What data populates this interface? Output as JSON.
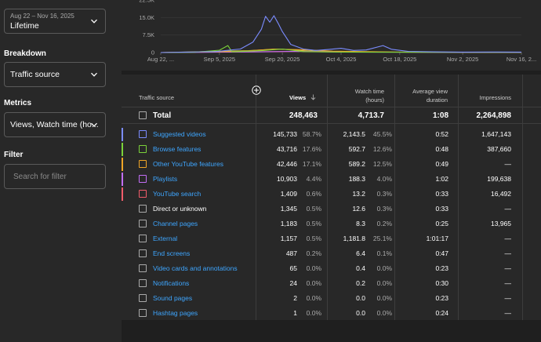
{
  "filters": {
    "date_range": "Aug 22 – Nov 16, 2025",
    "date_preset": "Lifetime",
    "breakdown_label": "Breakdown",
    "breakdown_value": "Traffic source",
    "metrics_label": "Metrics",
    "metrics_value": "Views, Watch time (ho...",
    "filter_label": "Filter",
    "filter_placeholder": "Search for filter"
  },
  "chart_data": {
    "type": "line",
    "y_ticks": [
      "0",
      "7.5K",
      "15.0K"
    ],
    "y_top_label_partial": "22.5K",
    "ylim": [
      0,
      22500
    ],
    "x_labels": [
      "Aug 22, ...",
      "Sep 5, 2025",
      "Sep 20, 2025",
      "Oct 4, 2025",
      "Oct 18, 2025",
      "Nov 2, 2025",
      "Nov 16, 2..."
    ],
    "date_range": [
      "2025-08-22",
      "2025-11-16"
    ],
    "grid": true,
    "series": [
      {
        "color": "#7b8cff",
        "points": [
          [
            "2025-08-22",
            0
          ],
          [
            "2025-08-28",
            200
          ],
          [
            "2025-09-04",
            400
          ],
          [
            "2025-09-10",
            1500
          ],
          [
            "2025-09-13",
            4500
          ],
          [
            "2025-09-15",
            10000
          ],
          [
            "2025-09-16",
            15500
          ],
          [
            "2025-09-17",
            13000
          ],
          [
            "2025-09-18",
            15800
          ],
          [
            "2025-09-19",
            12500
          ],
          [
            "2025-09-20",
            9000
          ],
          [
            "2025-09-22",
            3500
          ],
          [
            "2025-09-25",
            1500
          ],
          [
            "2025-09-28",
            900
          ],
          [
            "2025-10-01",
            1300
          ],
          [
            "2025-10-04",
            1800
          ],
          [
            "2025-10-07",
            900
          ],
          [
            "2025-10-10",
            1100
          ],
          [
            "2025-10-14",
            3000
          ],
          [
            "2025-10-16",
            1400
          ],
          [
            "2025-10-20",
            500
          ],
          [
            "2025-10-26",
            300
          ],
          [
            "2025-11-02",
            200
          ],
          [
            "2025-11-09",
            250
          ],
          [
            "2025-11-16",
            200
          ]
        ]
      },
      {
        "color": "#7bd23a",
        "points": [
          [
            "2025-08-22",
            0
          ],
          [
            "2025-08-30",
            100
          ],
          [
            "2025-09-05",
            1000
          ],
          [
            "2025-09-07",
            3000
          ],
          [
            "2025-09-08",
            300
          ],
          [
            "2025-09-15",
            800
          ],
          [
            "2025-09-20",
            1500
          ],
          [
            "2025-09-25",
            400
          ],
          [
            "2025-10-04",
            200
          ],
          [
            "2025-10-18",
            150
          ],
          [
            "2025-11-02",
            100
          ],
          [
            "2025-11-16",
            100
          ]
        ]
      },
      {
        "color": "#f0a526",
        "points": [
          [
            "2025-08-22",
            0
          ],
          [
            "2025-09-10",
            500
          ],
          [
            "2025-09-18",
            1500
          ],
          [
            "2025-09-25",
            1200
          ],
          [
            "2025-10-02",
            600
          ],
          [
            "2025-10-18",
            200
          ],
          [
            "2025-11-02",
            150
          ],
          [
            "2025-11-16",
            100
          ]
        ]
      },
      {
        "color": "#c26ef5",
        "points": [
          [
            "2025-08-22",
            0
          ],
          [
            "2025-09-15",
            300
          ],
          [
            "2025-09-22",
            500
          ],
          [
            "2025-10-05",
            200
          ],
          [
            "2025-11-16",
            50
          ]
        ]
      },
      {
        "color": "#f25c6a",
        "points": [
          [
            "2025-08-22",
            0
          ],
          [
            "2025-09-18",
            400
          ],
          [
            "2025-09-25",
            500
          ],
          [
            "2025-10-10",
            200
          ],
          [
            "2025-11-16",
            50
          ]
        ]
      },
      {
        "color": "#c9c24a",
        "points": [
          [
            "2025-08-22",
            0
          ],
          [
            "2025-09-12",
            800
          ],
          [
            "2025-09-19",
            1500
          ],
          [
            "2025-09-26",
            700
          ],
          [
            "2025-10-10",
            200
          ],
          [
            "2025-11-16",
            80
          ]
        ]
      }
    ]
  },
  "table": {
    "headers": {
      "source": "Traffic source",
      "views": "Views",
      "watch_line1": "Watch time",
      "watch_line2": "(hours)",
      "avd_line1": "Average view",
      "avd_line2": "duration",
      "impressions": "Impressions"
    },
    "total": {
      "label": "Total",
      "views": "248,463",
      "watch": "4,713.7",
      "avd": "1:08",
      "impressions": "2,264,898"
    },
    "rows": [
      {
        "source": "Suggested videos",
        "link": true,
        "color": "#7b8cff",
        "views": "145,733",
        "views_pct": "58.7%",
        "watch": "2,143.5",
        "watch_pct": "45.5%",
        "avd": "0:52",
        "impressions": "1,647,143"
      },
      {
        "source": "Browse features",
        "link": true,
        "color": "#7bd23a",
        "views": "43,716",
        "views_pct": "17.6%",
        "watch": "592.7",
        "watch_pct": "12.6%",
        "avd": "0:48",
        "impressions": "387,660"
      },
      {
        "source": "Other YouTube features",
        "link": true,
        "color": "#f0a526",
        "views": "42,446",
        "views_pct": "17.1%",
        "watch": "589.2",
        "watch_pct": "12.5%",
        "avd": "0:49",
        "impressions": "—"
      },
      {
        "source": "Playlists",
        "link": true,
        "color": "#c26ef5",
        "views": "10,903",
        "views_pct": "4.4%",
        "watch": "188.3",
        "watch_pct": "4.0%",
        "avd": "1:02",
        "impressions": "199,638"
      },
      {
        "source": "YouTube search",
        "link": true,
        "color": "#f25c6a",
        "views": "1,409",
        "views_pct": "0.6%",
        "watch": "13.2",
        "watch_pct": "0.3%",
        "avd": "0:33",
        "impressions": "16,492"
      },
      {
        "source": "Direct or unknown",
        "link": false,
        "color": "",
        "views": "1,345",
        "views_pct": "0.5%",
        "watch": "12.6",
        "watch_pct": "0.3%",
        "avd": "0:33",
        "impressions": "—"
      },
      {
        "source": "Channel pages",
        "link": true,
        "color": "",
        "views": "1,183",
        "views_pct": "0.5%",
        "watch": "8.3",
        "watch_pct": "0.2%",
        "avd": "0:25",
        "impressions": "13,965"
      },
      {
        "source": "External",
        "link": true,
        "color": "",
        "views": "1,157",
        "views_pct": "0.5%",
        "watch": "1,181.8",
        "watch_pct": "25.1%",
        "avd": "1:01:17",
        "impressions": "—"
      },
      {
        "source": "End screens",
        "link": true,
        "color": "",
        "views": "487",
        "views_pct": "0.2%",
        "watch": "6.4",
        "watch_pct": "0.1%",
        "avd": "0:47",
        "impressions": "—"
      },
      {
        "source": "Video cards and annotations",
        "link": true,
        "color": "",
        "views": "65",
        "views_pct": "0.0%",
        "watch": "0.4",
        "watch_pct": "0.0%",
        "avd": "0:23",
        "impressions": "—"
      },
      {
        "source": "Notifications",
        "link": true,
        "color": "",
        "views": "24",
        "views_pct": "0.0%",
        "watch": "0.2",
        "watch_pct": "0.0%",
        "avd": "0:30",
        "impressions": "—"
      },
      {
        "source": "Sound pages",
        "link": true,
        "color": "",
        "views": "2",
        "views_pct": "0.0%",
        "watch": "0.0",
        "watch_pct": "0.0%",
        "avd": "0:23",
        "impressions": "—"
      },
      {
        "source": "Hashtag pages",
        "link": true,
        "color": "",
        "views": "1",
        "views_pct": "0.0%",
        "watch": "0.0",
        "watch_pct": "0.0%",
        "avd": "0:24",
        "impressions": "—"
      }
    ]
  }
}
